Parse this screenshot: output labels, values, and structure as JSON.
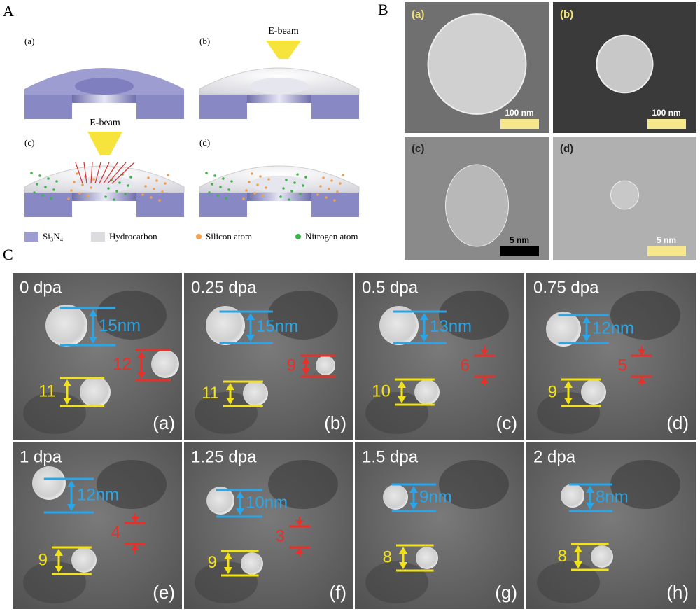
{
  "panel_a": {
    "label": "A",
    "subpanels": [
      "(a)",
      "(b)",
      "(c)",
      "(d)"
    ],
    "beam_labels": [
      "E-beam",
      "E-beam"
    ],
    "legend": [
      "Si₃N₄",
      "Hydrocarbon",
      "Silicon atom",
      "Nitrogen atom"
    ]
  },
  "panel_b": {
    "label": "B",
    "images": [
      {
        "label": "(a)",
        "scale": "100 nm"
      },
      {
        "label": "(b)",
        "scale": "100 nm"
      },
      {
        "label": "(c)",
        "scale": "5 nm"
      },
      {
        "label": "(d)",
        "scale": "5 nm"
      }
    ]
  },
  "panel_c": {
    "label": "C",
    "frames": [
      {
        "dose": "0 dpa",
        "label": "(a)",
        "blue": "15nm",
        "red": "12",
        "yellow": "11"
      },
      {
        "dose": "0.25 dpa",
        "label": "(b)",
        "blue": "15nm",
        "red": "9",
        "yellow": "11"
      },
      {
        "dose": "0.5 dpa",
        "label": "(c)",
        "blue": "13nm",
        "red": "6",
        "yellow": "10"
      },
      {
        "dose": "0.75 dpa",
        "label": "(d)",
        "blue": "12nm",
        "red": "5",
        "yellow": "9"
      },
      {
        "dose": "1 dpa",
        "label": "(e)",
        "blue": "12nm",
        "red": "4",
        "yellow": "9"
      },
      {
        "dose": "1.25 dpa",
        "label": "(f)",
        "blue": "10nm",
        "red": "3",
        "yellow": "9"
      },
      {
        "dose": "1.5 dpa",
        "label": "(g)",
        "blue": "9nm",
        "yellow": "8"
      },
      {
        "dose": "2 dpa",
        "label": "(h)",
        "blue": "8nm",
        "yellow": "8"
      }
    ]
  }
}
